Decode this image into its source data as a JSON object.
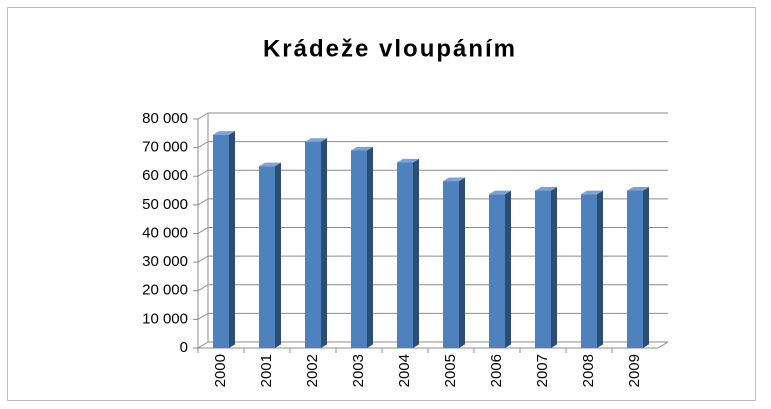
{
  "chart_data": {
    "type": "bar3d",
    "title": "Krádeže vloupáním",
    "categories": [
      "2000",
      "2001",
      "2002",
      "2003",
      "2004",
      "2005",
      "2006",
      "2007",
      "2008",
      "2009"
    ],
    "values": [
      74500,
      63500,
      72000,
      69000,
      64800,
      58300,
      53700,
      55000,
      53700,
      55000
    ],
    "color": "#4f81bd",
    "ylim": [
      0,
      80000
    ],
    "yticks": [
      0,
      {
        "value": 10000,
        "label": "10 000"
      },
      {
        "value": 20000,
        "label": "20 000"
      },
      {
        "value": 30000,
        "label": "30 000"
      },
      {
        "value": 40000,
        "label": "40 000"
      },
      {
        "value": 50000,
        "label": "50 000"
      },
      {
        "value": 60000,
        "label": "60 000"
      },
      {
        "value": 70000,
        "label": "70 000"
      },
      {
        "value": 80000,
        "label": "80 000"
      }
    ],
    "grid": true
  }
}
